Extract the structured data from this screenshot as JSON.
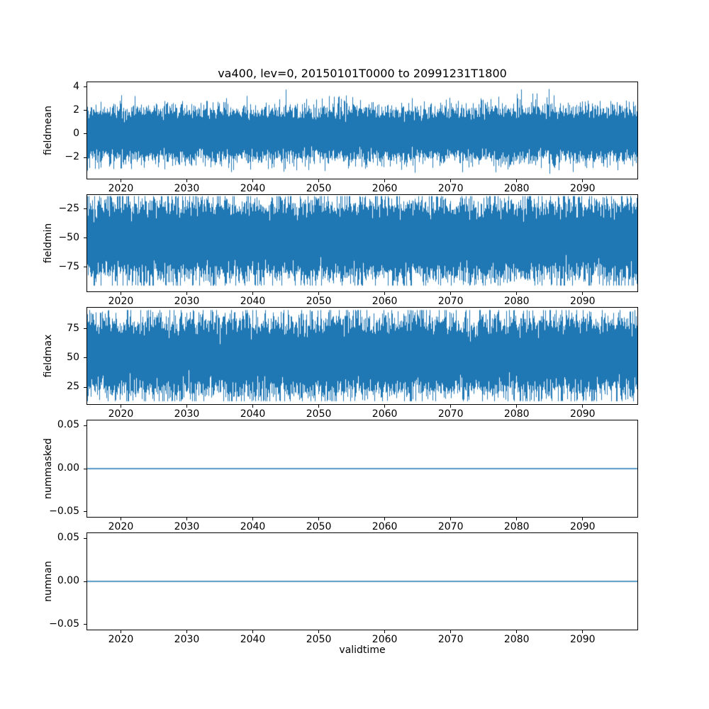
{
  "figure": {
    "title": "va400, lev=0, 20150101T0000 to 20991231T1800",
    "xlabel": "validtime",
    "background": "#ffffff",
    "accent_color": "#1f77b4",
    "spine_color": "#000000"
  },
  "chart_data": [
    {
      "type": "line",
      "title": "va400, lev=0, 20150101T0000 to 20991231T1800",
      "ylabel": "fieldmean",
      "xlim": [
        2014.9,
        2098.3
      ],
      "ylim": [
        -3.8,
        4.4
      ],
      "x_ticks": [
        2020,
        2030,
        2040,
        2050,
        2060,
        2070,
        2080,
        2090
      ],
      "x_tick_labels": [
        "2020",
        "2030",
        "2040",
        "2050",
        "2060",
        "2070",
        "2080",
        "2090"
      ],
      "y_ticks": [
        -2,
        0,
        2,
        4
      ],
      "y_tick_labels": [
        "−2",
        "0",
        "2",
        "4"
      ],
      "grid": false,
      "legend": null,
      "series": [
        {
          "name": "fieldmean",
          "kind": "noise",
          "mean": 0.0,
          "std": 0.95,
          "observed_min": -3.4,
          "observed_max": 4.0,
          "seed": 42
        }
      ]
    },
    {
      "type": "line",
      "title": "",
      "ylabel": "fieldmin",
      "xlim": [
        2014.9,
        2098.3
      ],
      "ylim": [
        -96,
        -13
      ],
      "x_ticks": [
        2020,
        2030,
        2040,
        2050,
        2060,
        2070,
        2080,
        2090
      ],
      "x_tick_labels": [
        "2020",
        "2030",
        "2040",
        "2050",
        "2060",
        "2070",
        "2080",
        "2090"
      ],
      "y_ticks": [
        -75,
        -50,
        -25
      ],
      "y_tick_labels": [
        "−75",
        "−50",
        "−25"
      ],
      "grid": false,
      "legend": null,
      "series": [
        {
          "name": "fieldmin",
          "kind": "noise",
          "mean": -51.5,
          "std": 14.0,
          "observed_min": -91.0,
          "observed_max": -14.0,
          "seed": 7
        }
      ]
    },
    {
      "type": "line",
      "title": "",
      "ylabel": "fieldmax",
      "xlim": [
        2014.9,
        2098.3
      ],
      "ylim": [
        10.5,
        93
      ],
      "x_ticks": [
        2020,
        2030,
        2040,
        2050,
        2060,
        2070,
        2080,
        2090
      ],
      "x_tick_labels": [
        "2020",
        "2030",
        "2040",
        "2050",
        "2060",
        "2070",
        "2080",
        "2090"
      ],
      "y_ticks": [
        25,
        50,
        75
      ],
      "y_tick_labels": [
        "25",
        "50",
        "75"
      ],
      "grid": false,
      "legend": null,
      "series": [
        {
          "name": "fieldmax",
          "kind": "noise",
          "mean": 51.5,
          "std": 14.0,
          "observed_min": 13.0,
          "observed_max": 91.0,
          "seed": 13
        }
      ]
    },
    {
      "type": "line",
      "title": "",
      "ylabel": "nummasked",
      "xlim": [
        2014.9,
        2098.3
      ],
      "ylim": [
        -0.056,
        0.056
      ],
      "x_ticks": [
        2020,
        2030,
        2040,
        2050,
        2060,
        2070,
        2080,
        2090
      ],
      "x_tick_labels": [
        "2020",
        "2030",
        "2040",
        "2050",
        "2060",
        "2070",
        "2080",
        "2090"
      ],
      "y_ticks": [
        -0.05,
        0,
        0.05
      ],
      "y_tick_labels": [
        "−0.05",
        "0.00",
        "0.05"
      ],
      "grid": false,
      "legend": null,
      "series": [
        {
          "name": "nummasked",
          "kind": "constant",
          "value": 0.0
        }
      ]
    },
    {
      "type": "line",
      "title": "",
      "ylabel": "numnan",
      "xlim": [
        2014.9,
        2098.3
      ],
      "ylim": [
        -0.056,
        0.056
      ],
      "x_ticks": [
        2020,
        2030,
        2040,
        2050,
        2060,
        2070,
        2080,
        2090
      ],
      "x_tick_labels": [
        "2020",
        "2030",
        "2040",
        "2050",
        "2060",
        "2070",
        "2080",
        "2090"
      ],
      "y_ticks": [
        -0.05,
        0,
        0.05
      ],
      "y_tick_labels": [
        "−0.05",
        "0.00",
        "0.05"
      ],
      "grid": false,
      "legend": null,
      "series": [
        {
          "name": "numnan",
          "kind": "constant",
          "value": 0.0
        }
      ]
    }
  ]
}
